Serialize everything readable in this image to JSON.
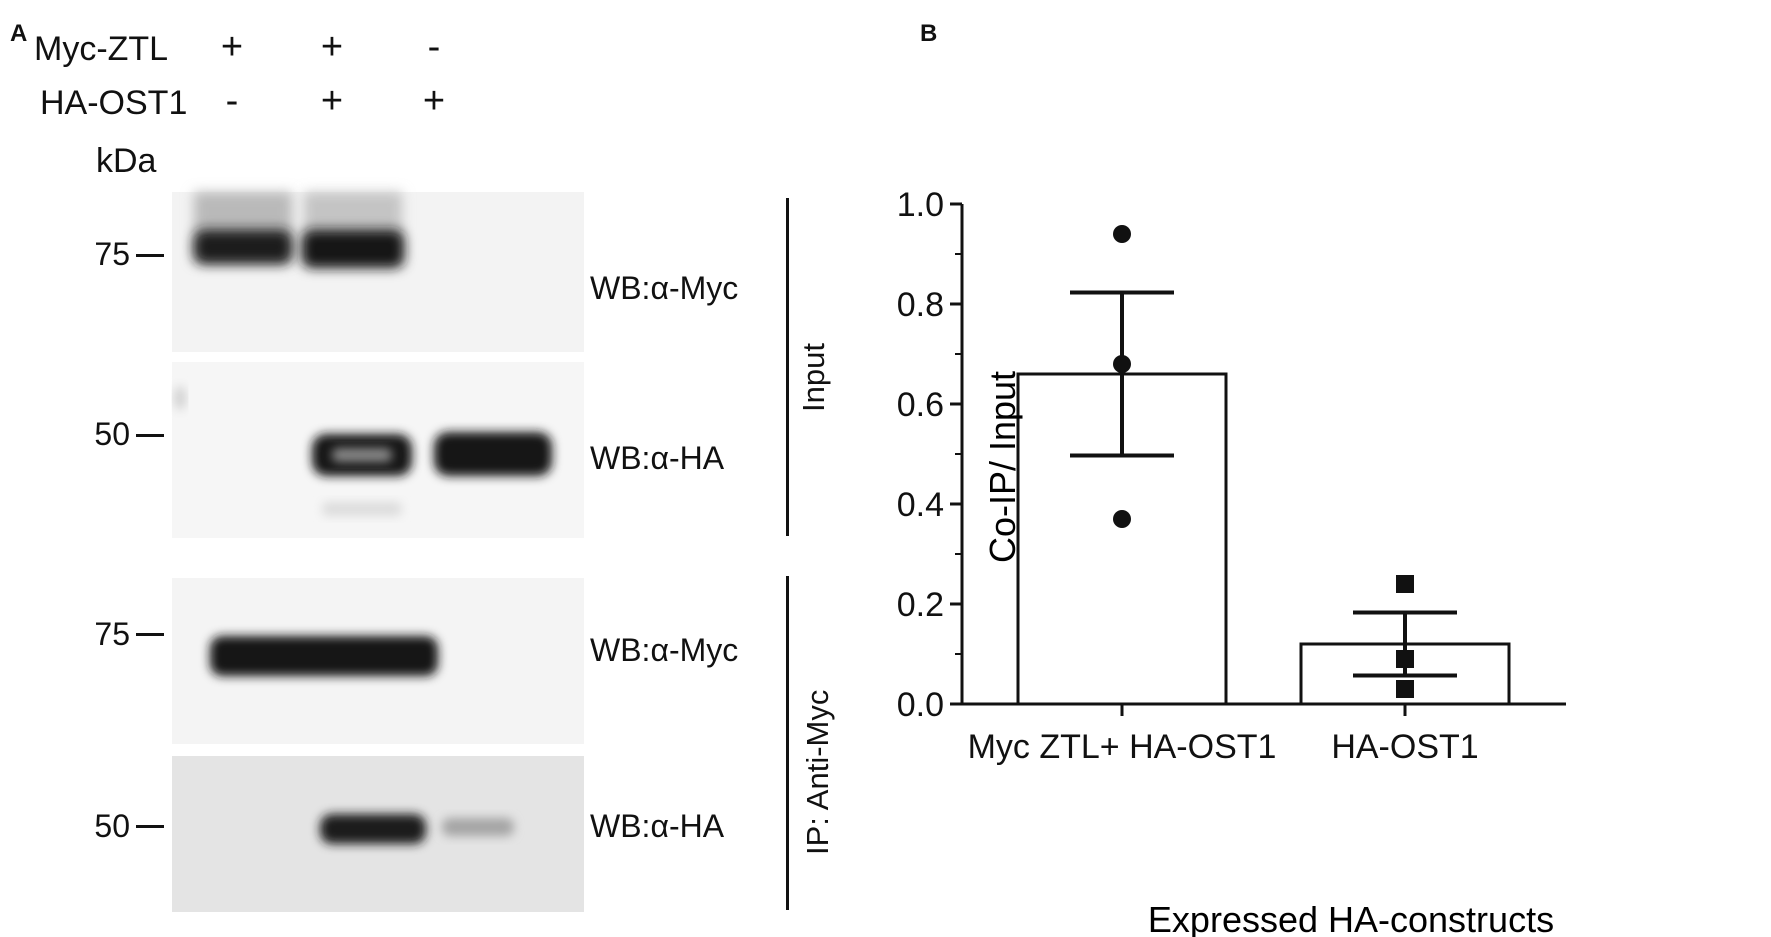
{
  "panel_a": {
    "letter": "A",
    "rows": [
      {
        "label": "Myc-ZTL",
        "signs": [
          "+",
          "+",
          "-"
        ]
      },
      {
        "label": "HA-OST1",
        "signs": [
          "-",
          "+",
          "+"
        ]
      }
    ],
    "kda_label": "kDa",
    "blots": [
      {
        "marker": "75",
        "antibody": "WB:α-Myc"
      },
      {
        "marker": "50",
        "antibody": "WB:α-HA"
      },
      {
        "marker": "75",
        "antibody": "WB:α-Myc"
      },
      {
        "marker": "50",
        "antibody": "WB:α-HA"
      }
    ],
    "groups": [
      {
        "label": "Input"
      },
      {
        "label": "IP: Anti-Myc"
      }
    ]
  },
  "panel_b": {
    "letter": "B"
  },
  "chart_data": {
    "type": "bar",
    "categories": [
      "Myc ZTL+ HA-OST1",
      "HA-OST1"
    ],
    "values": [
      0.66,
      0.12
    ],
    "error": [
      0.163,
      0.063
    ],
    "points": [
      [
        0.94,
        0.68,
        0.37
      ],
      [
        0.24,
        0.09,
        0.03
      ]
    ],
    "point_markers": [
      "circle",
      "square"
    ],
    "xlabel": "Expressed HA-constructs",
    "ylabel": "Co-IP/ Input",
    "ylim": [
      0,
      1.0
    ],
    "yticks": [
      "0.0",
      "0.2",
      "0.4",
      "0.6",
      "0.8",
      "1.0"
    ],
    "grid": false
  }
}
